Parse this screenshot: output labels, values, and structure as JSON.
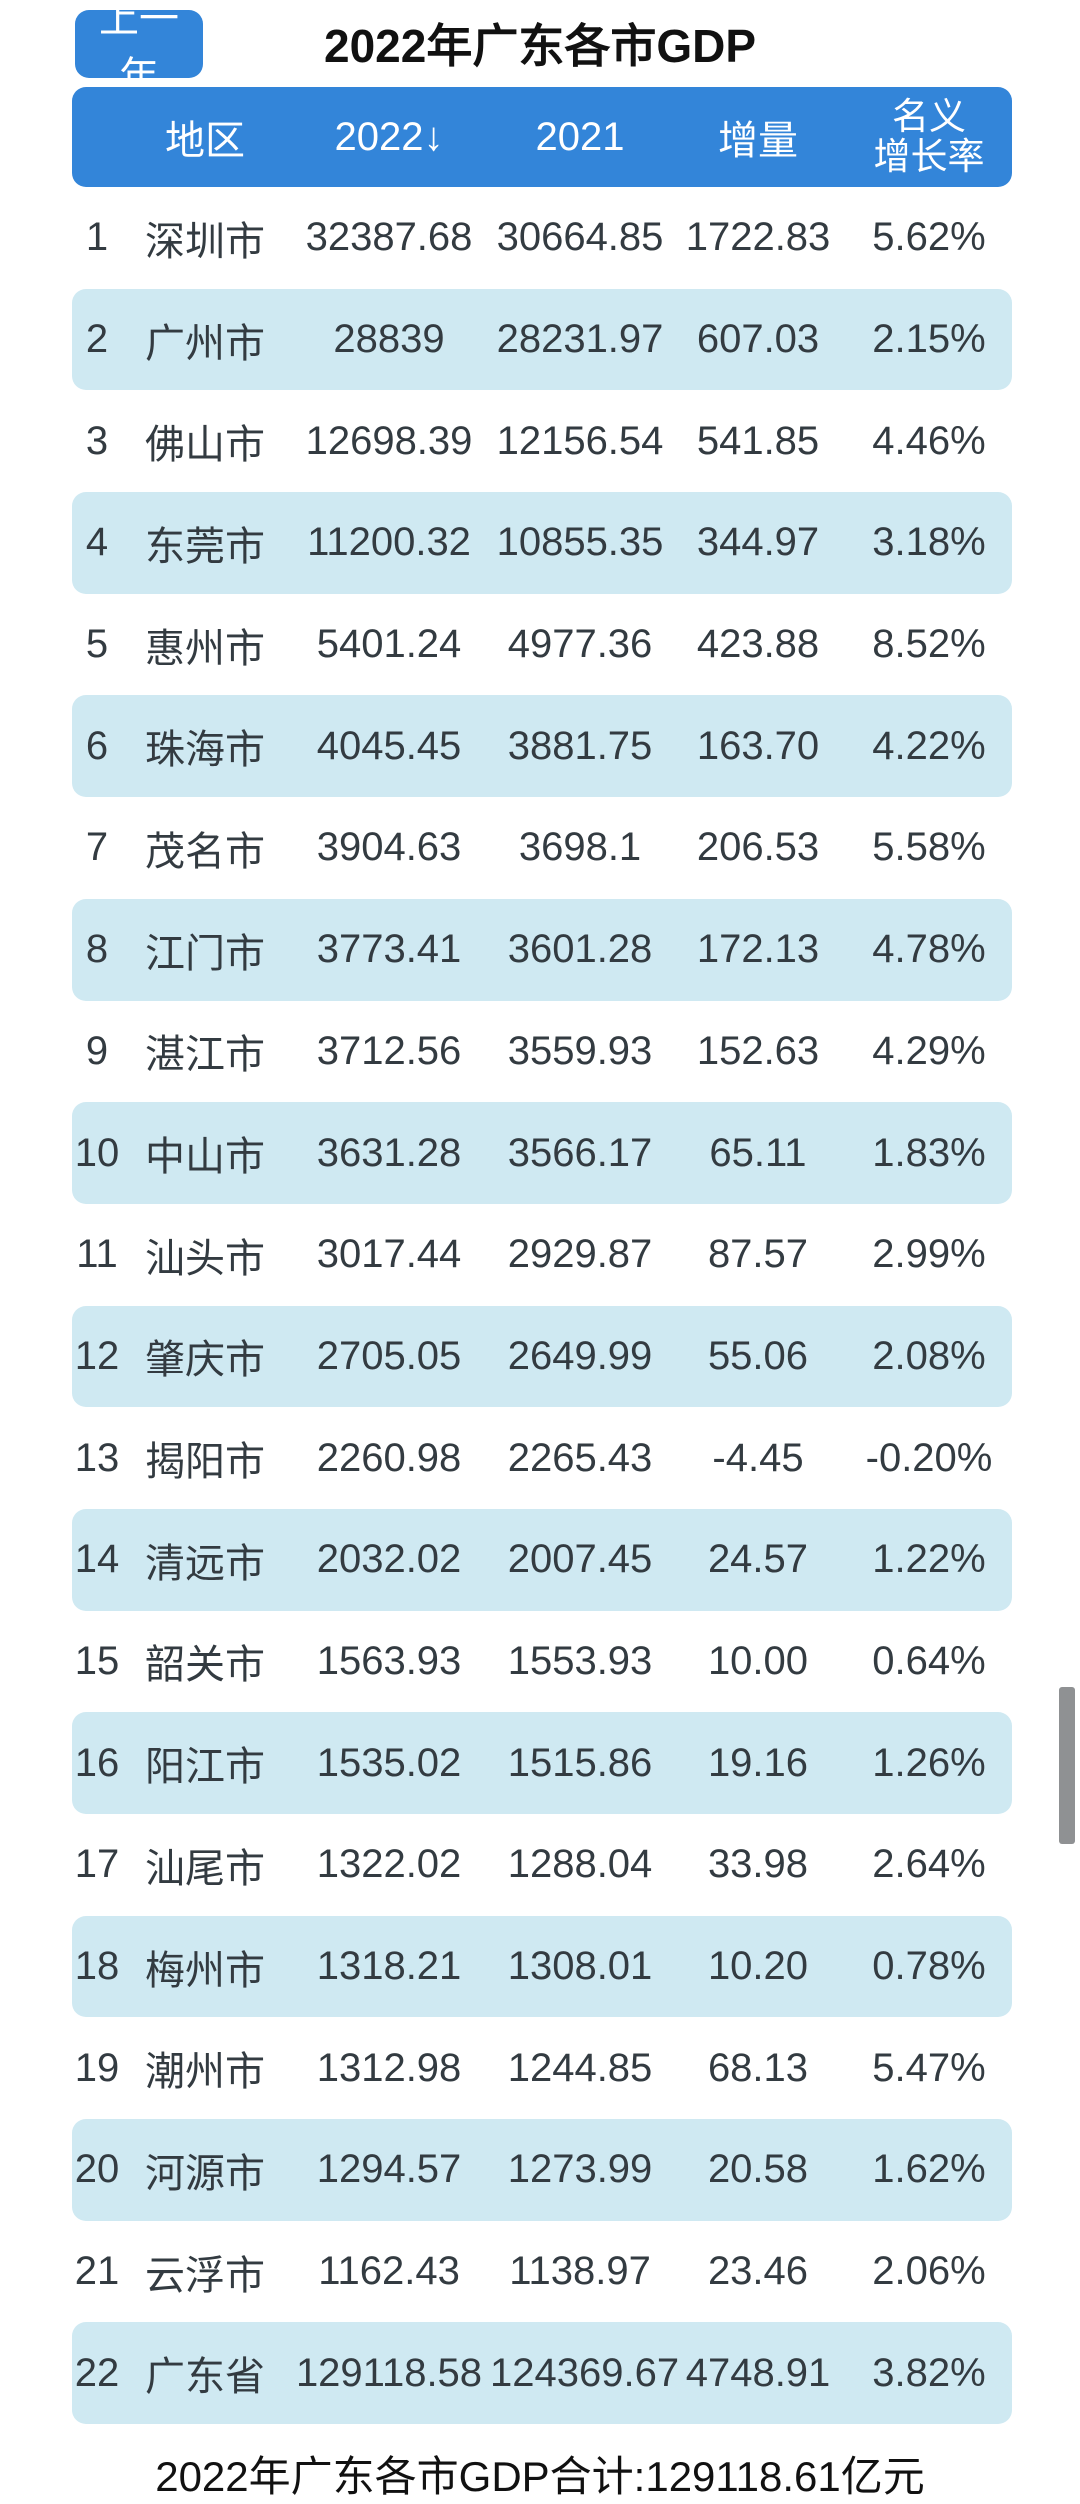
{
  "toolbar": {
    "prev_year_button": "上一年"
  },
  "title": "2022年广东各市GDP",
  "table": {
    "headers": {
      "region": "地区",
      "y2022": "2022↓",
      "y2021": "2021",
      "delta": "增量",
      "rate_line1": "名义",
      "rate_line2": "增长率"
    },
    "rows": [
      {
        "rank": "1",
        "city": "深圳市",
        "gdp2022": "32387.68",
        "gdp2021": "30664.85",
        "delta": "1722.83",
        "rate": "5.62%"
      },
      {
        "rank": "2",
        "city": "广州市",
        "gdp2022": "28839",
        "gdp2021": "28231.97",
        "delta": "607.03",
        "rate": "2.15%"
      },
      {
        "rank": "3",
        "city": "佛山市",
        "gdp2022": "12698.39",
        "gdp2021": "12156.54",
        "delta": "541.85",
        "rate": "4.46%"
      },
      {
        "rank": "4",
        "city": "东莞市",
        "gdp2022": "11200.32",
        "gdp2021": "10855.35",
        "delta": "344.97",
        "rate": "3.18%"
      },
      {
        "rank": "5",
        "city": "惠州市",
        "gdp2022": "5401.24",
        "gdp2021": "4977.36",
        "delta": "423.88",
        "rate": "8.52%"
      },
      {
        "rank": "6",
        "city": "珠海市",
        "gdp2022": "4045.45",
        "gdp2021": "3881.75",
        "delta": "163.70",
        "rate": "4.22%"
      },
      {
        "rank": "7",
        "city": "茂名市",
        "gdp2022": "3904.63",
        "gdp2021": "3698.1",
        "delta": "206.53",
        "rate": "5.58%"
      },
      {
        "rank": "8",
        "city": "江门市",
        "gdp2022": "3773.41",
        "gdp2021": "3601.28",
        "delta": "172.13",
        "rate": "4.78%"
      },
      {
        "rank": "9",
        "city": "湛江市",
        "gdp2022": "3712.56",
        "gdp2021": "3559.93",
        "delta": "152.63",
        "rate": "4.29%"
      },
      {
        "rank": "10",
        "city": "中山市",
        "gdp2022": "3631.28",
        "gdp2021": "3566.17",
        "delta": "65.11",
        "rate": "1.83%"
      },
      {
        "rank": "11",
        "city": "汕头市",
        "gdp2022": "3017.44",
        "gdp2021": "2929.87",
        "delta": "87.57",
        "rate": "2.99%"
      },
      {
        "rank": "12",
        "city": "肇庆市",
        "gdp2022": "2705.05",
        "gdp2021": "2649.99",
        "delta": "55.06",
        "rate": "2.08%"
      },
      {
        "rank": "13",
        "city": "揭阳市",
        "gdp2022": "2260.98",
        "gdp2021": "2265.43",
        "delta": "-4.45",
        "rate": "-0.20%"
      },
      {
        "rank": "14",
        "city": "清远市",
        "gdp2022": "2032.02",
        "gdp2021": "2007.45",
        "delta": "24.57",
        "rate": "1.22%"
      },
      {
        "rank": "15",
        "city": "韶关市",
        "gdp2022": "1563.93",
        "gdp2021": "1553.93",
        "delta": "10.00",
        "rate": "0.64%"
      },
      {
        "rank": "16",
        "city": "阳江市",
        "gdp2022": "1535.02",
        "gdp2021": "1515.86",
        "delta": "19.16",
        "rate": "1.26%"
      },
      {
        "rank": "17",
        "city": "汕尾市",
        "gdp2022": "1322.02",
        "gdp2021": "1288.04",
        "delta": "33.98",
        "rate": "2.64%"
      },
      {
        "rank": "18",
        "city": "梅州市",
        "gdp2022": "1318.21",
        "gdp2021": "1308.01",
        "delta": "10.20",
        "rate": "0.78%"
      },
      {
        "rank": "19",
        "city": "潮州市",
        "gdp2022": "1312.98",
        "gdp2021": "1244.85",
        "delta": "68.13",
        "rate": "5.47%"
      },
      {
        "rank": "20",
        "city": "河源市",
        "gdp2022": "1294.57",
        "gdp2021": "1273.99",
        "delta": "20.58",
        "rate": "1.62%"
      },
      {
        "rank": "21",
        "city": "云浮市",
        "gdp2022": "1162.43",
        "gdp2021": "1138.97",
        "delta": "23.46",
        "rate": "2.06%"
      },
      {
        "rank": "22",
        "city": "广东省",
        "gdp2022": "129118.58",
        "gdp2021": "124369.67",
        "delta": "4748.91",
        "rate": "3.82%"
      }
    ]
  },
  "footer": {
    "summary": "2022年广东各市GDP合计:129118.61亿元"
  },
  "colors": {
    "accent_blue": "#3385d9",
    "alt_row_blue": "#cfe9f2",
    "scrollbar_gray": "#8f9193",
    "row_text": "#333b41"
  }
}
